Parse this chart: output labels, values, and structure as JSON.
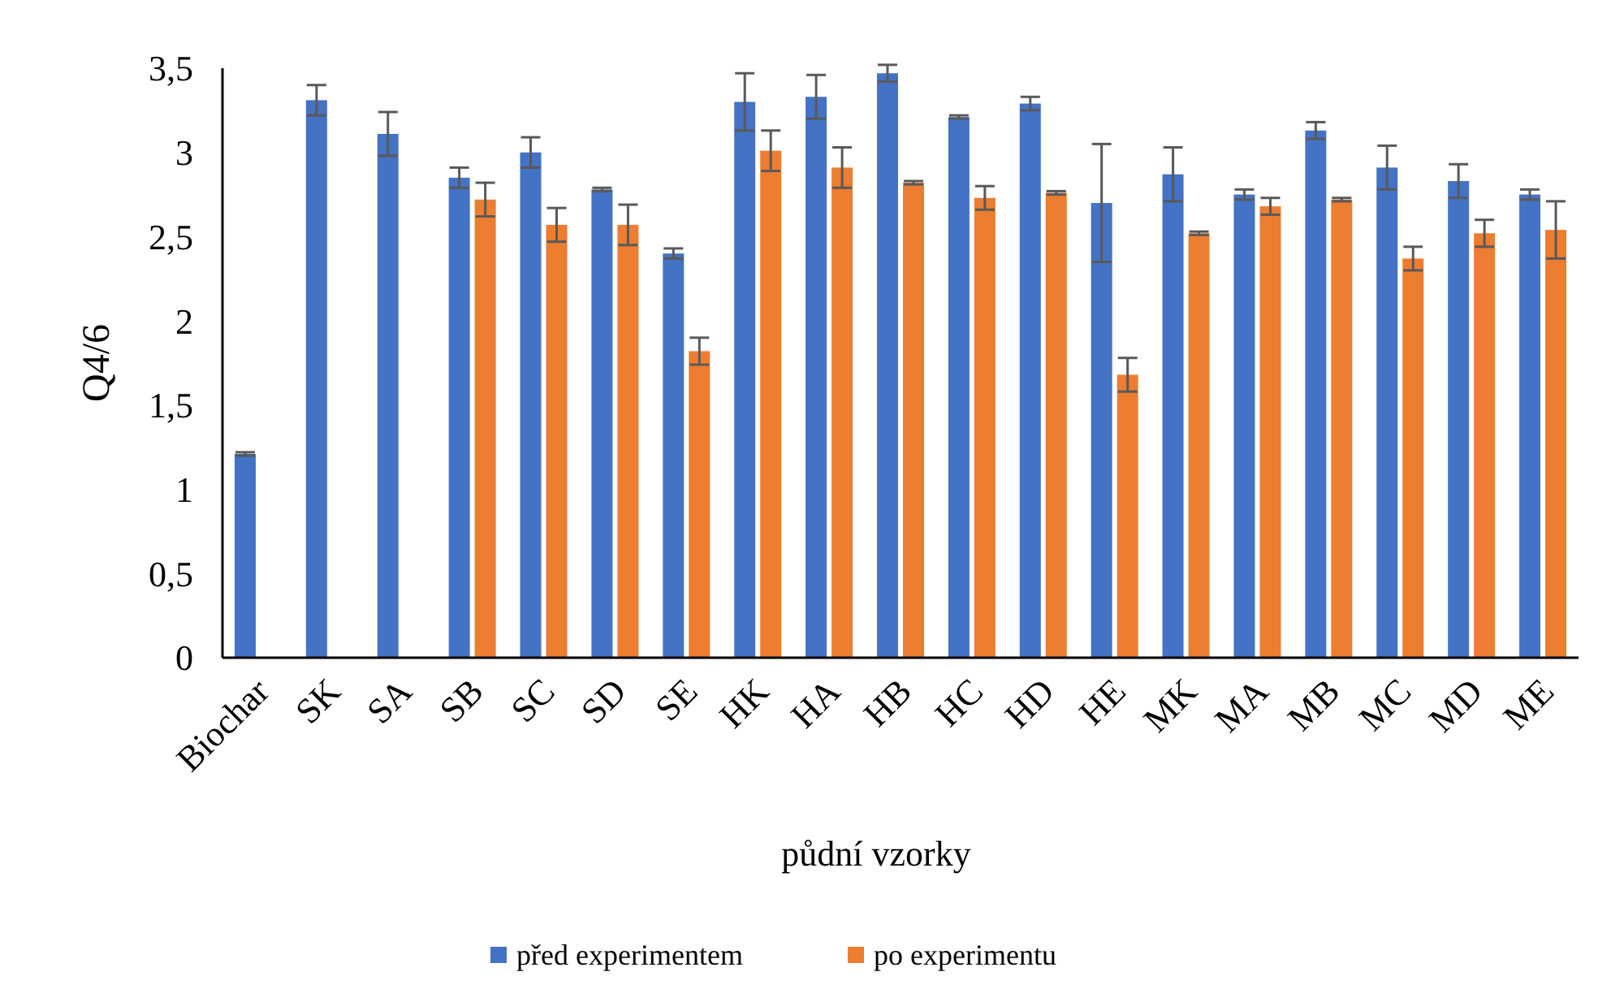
{
  "chart_data": {
    "type": "bar",
    "xlabel": "půdní vzorky",
    "ylabel": "Q4/6",
    "categories": [
      "Biochar",
      "SK",
      "SA",
      "SB",
      "SC",
      "SD",
      "SE",
      "HK",
      "HA",
      "HB",
      "HC",
      "HD",
      "HE",
      "MK",
      "MA",
      "MB",
      "MC",
      "MD",
      "ME"
    ],
    "series": [
      {
        "name": "před experimentem",
        "color": "#4472c4",
        "values": [
          1.21,
          3.31,
          3.11,
          2.85,
          3.0,
          2.78,
          2.4,
          3.3,
          3.33,
          3.47,
          3.21,
          3.29,
          2.7,
          2.87,
          2.75,
          3.13,
          2.91,
          2.83,
          2.75
        ],
        "errors": [
          0.01,
          0.09,
          0.13,
          0.06,
          0.09,
          0.01,
          0.03,
          0.17,
          0.13,
          0.05,
          0.01,
          0.04,
          0.35,
          0.16,
          0.03,
          0.05,
          0.13,
          0.1,
          0.03
        ]
      },
      {
        "name": "po experimentu",
        "color": "#ed7d31",
        "values": [
          null,
          null,
          null,
          2.72,
          2.57,
          2.57,
          1.82,
          3.01,
          2.91,
          2.82,
          2.73,
          2.76,
          1.68,
          2.52,
          2.68,
          2.72,
          2.37,
          2.52,
          2.54
        ],
        "errors": [
          null,
          null,
          null,
          0.1,
          0.1,
          0.12,
          0.08,
          0.12,
          0.12,
          0.01,
          0.07,
          0.01,
          0.1,
          0.01,
          0.05,
          0.01,
          0.07,
          0.08,
          0.17
        ]
      }
    ],
    "ylim": [
      0,
      3.5
    ],
    "yticks": [
      {
        "value": 0,
        "label": "0"
      },
      {
        "value": 0.5,
        "label": "0,5"
      },
      {
        "value": 1,
        "label": "1"
      },
      {
        "value": 1.5,
        "label": "1,5"
      },
      {
        "value": 2,
        "label": "2"
      },
      {
        "value": 2.5,
        "label": "2,5"
      },
      {
        "value": 3,
        "label": "3"
      },
      {
        "value": 3.5,
        "label": "3,5"
      }
    ],
    "legend": "bottom"
  }
}
